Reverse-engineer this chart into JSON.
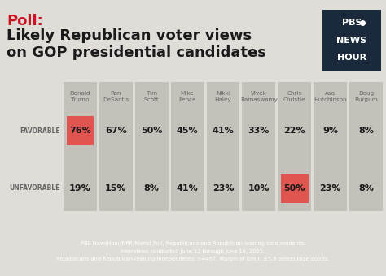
{
  "title_poll": "Poll:  ",
  "title_main": "Likely Republican voter views\non GOP presidential candidates",
  "bg_color": "#e0ddd8",
  "footer_bg": "#1e2d3d",
  "footer_text": "PBS NewsHour/NPR/Marist Poll, Republicans and Republican-leaning independents.\nInterviews conducted June 12 through June 14, 2023.\nRepublicans and Republican-leaning independents: n=467. Margin of Error: ±5.9 percentage points.",
  "candidates": [
    "Donald\nTrump",
    "Ron\nDeSantis",
    "Tim\nScott",
    "Mike\nPence",
    "Nikki\nHaley",
    "Vivek\nRamaswamy",
    "Chris\nChristie",
    "Asa\nHutchinson",
    "Doug\nBurgum"
  ],
  "favorable": [
    76,
    67,
    50,
    45,
    41,
    33,
    22,
    9,
    8
  ],
  "unfavorable": [
    19,
    15,
    8,
    41,
    23,
    10,
    50,
    23,
    8
  ],
  "col_bg": "#c4c1ba",
  "highlight_red": "#e05550",
  "favorable_highlight": [
    0
  ],
  "unfavorable_highlight": [
    6
  ],
  "row_label_favorable": "FAVORABLE",
  "row_label_unfavorable": "UNFAVORABLE",
  "pbs_bg": "#1a2a3c",
  "title_red": "#cc1122",
  "title_black": "#1a1a1a",
  "name_color": "#666666",
  "label_color": "#666666",
  "value_color": "#1a1a1a"
}
